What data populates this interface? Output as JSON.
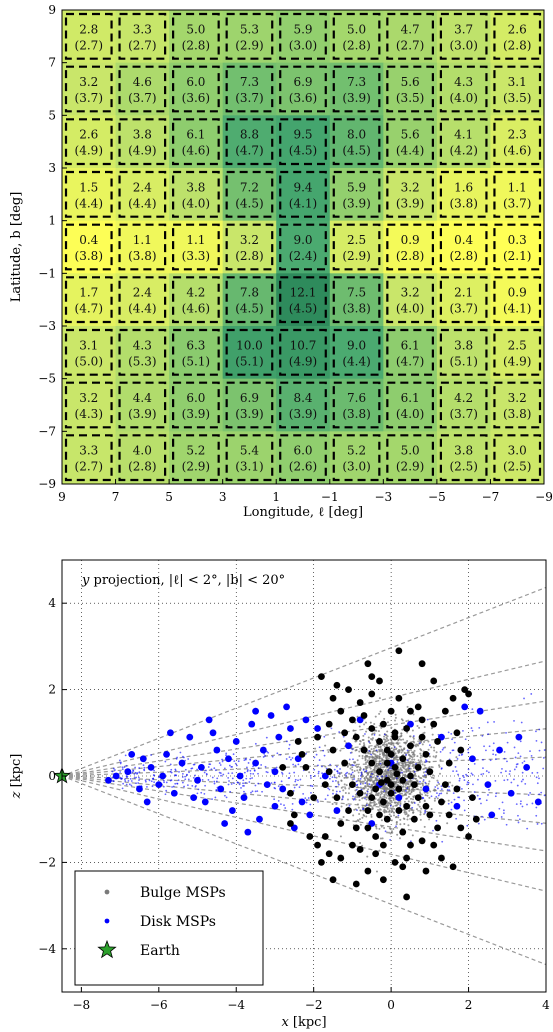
{
  "chart_data": [
    {
      "type": "heatmap",
      "xlabel": "Longitude, ℓ [deg]",
      "ylabel": "Latitude, b [deg]",
      "xlim": [
        9,
        -9
      ],
      "ylim": [
        -9,
        9
      ],
      "x_ticks": [
        "9",
        "7",
        "5",
        "3",
        "1",
        "−1",
        "−3",
        "−5",
        "−7",
        "−9"
      ],
      "y_ticks": [
        "9",
        "7",
        "5",
        "3",
        "1",
        "−1",
        "−3",
        "−5",
        "−7",
        "−9"
      ],
      "colormap": [
        "#ffff55",
        "#c8e66a",
        "#8ccc6e",
        "#47a870",
        "#2e8b5c"
      ],
      "value_range": [
        0.3,
        12.1
      ],
      "rows": [
        {
          "values": [
            "2.8",
            "3.3",
            "5.0",
            "5.3",
            "5.9",
            "5.0",
            "4.7",
            "3.7",
            "2.6"
          ],
          "errors": [
            "(2.7)",
            "(2.7)",
            "(2.8)",
            "(2.9)",
            "(3.0)",
            "(2.8)",
            "(2.7)",
            "(3.0)",
            "(2.8)"
          ]
        },
        {
          "values": [
            "3.2",
            "4.6",
            "6.0",
            "7.3",
            "6.9",
            "7.3",
            "5.6",
            "4.3",
            "3.1"
          ],
          "errors": [
            "(3.7)",
            "(3.7)",
            "(3.6)",
            "(3.7)",
            "(3.6)",
            "(3.9)",
            "(3.5)",
            "(4.0)",
            "(3.5)"
          ]
        },
        {
          "values": [
            "2.6",
            "3.8",
            "6.1",
            "8.8",
            "9.5",
            "8.0",
            "5.6",
            "4.1",
            "2.3"
          ],
          "errors": [
            "(4.9)",
            "(4.9)",
            "(4.6)",
            "(4.7)",
            "(4.5)",
            "(4.5)",
            "(4.4)",
            "(4.2)",
            "(4.6)"
          ]
        },
        {
          "values": [
            "1.5",
            "2.4",
            "3.8",
            "7.2",
            "9.4",
            "5.9",
            "3.2",
            "1.6",
            "1.1"
          ],
          "errors": [
            "(4.4)",
            "(4.4)",
            "(4.0)",
            "(4.5)",
            "(4.1)",
            "(3.9)",
            "(3.9)",
            "(3.8)",
            "(3.7)"
          ]
        },
        {
          "values": [
            "0.4",
            "1.1",
            "1.1",
            "3.2",
            "9.0",
            "2.5",
            "0.9",
            "0.4",
            "0.3"
          ],
          "errors": [
            "(3.8)",
            "(3.8)",
            "(3.3)",
            "(2.8)",
            "(2.4)",
            "(2.9)",
            "(2.8)",
            "(2.8)",
            "(2.1)"
          ]
        },
        {
          "values": [
            "1.7",
            "2.4",
            "4.2",
            "7.8",
            "12.1",
            "7.5",
            "3.2",
            "2.1",
            "0.9"
          ],
          "errors": [
            "(4.7)",
            "(4.4)",
            "(4.6)",
            "(4.5)",
            "(4.5)",
            "(3.8)",
            "(4.0)",
            "(3.7)",
            "(4.1)"
          ]
        },
        {
          "values": [
            "3.1",
            "4.3",
            "6.3",
            "10.0",
            "10.7",
            "9.0",
            "6.1",
            "3.8",
            "2.5"
          ],
          "errors": [
            "(5.0)",
            "(5.3)",
            "(5.1)",
            "(5.1)",
            "(4.9)",
            "(4.4)",
            "(4.7)",
            "(5.1)",
            "(4.9)"
          ]
        },
        {
          "values": [
            "3.2",
            "4.4",
            "6.0",
            "6.9",
            "8.4",
            "7.6",
            "6.1",
            "4.2",
            "3.2"
          ],
          "errors": [
            "(4.3)",
            "(3.9)",
            "(3.9)",
            "(3.9)",
            "(3.9)",
            "(3.8)",
            "(4.0)",
            "(3.7)",
            "(3.8)"
          ]
        },
        {
          "values": [
            "3.3",
            "4.0",
            "5.2",
            "5.4",
            "6.0",
            "5.2",
            "5.0",
            "3.8",
            "3.0"
          ],
          "errors": [
            "(2.7)",
            "(2.8)",
            "(2.9)",
            "(3.1)",
            "(2.6)",
            "(3.0)",
            "(2.9)",
            "(2.5)",
            "(2.5)"
          ]
        }
      ]
    },
    {
      "type": "scatter",
      "annotation_parts": [
        "y",
        " projection, |ℓ| < 2°, |b| < 20°"
      ],
      "xlabel_var": "x",
      "xlabel_unit": " [kpc]",
      "ylabel_var": "z",
      "ylabel_unit": " [kpc]",
      "xlim": [
        -8.5,
        4
      ],
      "ylim": [
        -5,
        5
      ],
      "x_ticks": [
        -8,
        -6,
        -4,
        -2,
        0,
        2,
        4
      ],
      "y_ticks": [
        -4,
        -2,
        0,
        2,
        4
      ],
      "x_tick_labels": [
        "−8",
        "−6",
        "−4",
        "−2",
        "0",
        "2",
        "4"
      ],
      "y_tick_labels": [
        "−4",
        "−2",
        "0",
        "2",
        "4"
      ],
      "grid": true,
      "legend_placement": "lower-left",
      "earth": {
        "x": -8.5,
        "z": 0
      },
      "cone_slopes": [
        0.3492,
        0.2132,
        0.1388,
        0.0875,
        0.035
      ],
      "colors": {
        "bulge": "#000000",
        "bulge_small": "#7a7a7a",
        "disk": "#0000ff",
        "earth": "#2ca02c"
      },
      "series": [
        {
          "name": "Bulge MSPs",
          "points": [
            [
              -2.1,
              -1.4
            ],
            [
              -2.5,
              -0.9
            ],
            [
              -1.9,
              -1.6
            ],
            [
              -1.6,
              -1.8
            ],
            [
              -1.5,
              -2.4
            ],
            [
              -1.8,
              -2.0
            ],
            [
              -1.3,
              -1.9
            ],
            [
              -1.0,
              -1.6
            ],
            [
              -0.8,
              -1.7
            ],
            [
              -0.6,
              -2.2
            ],
            [
              -0.4,
              -1.8
            ],
            [
              -0.2,
              -2.4
            ],
            [
              0.1,
              -2.0
            ],
            [
              0.3,
              -2.1
            ],
            [
              0.5,
              -1.6
            ],
            [
              0.8,
              -1.5
            ],
            [
              1.1,
              -1.6
            ],
            [
              1.3,
              -1.9
            ],
            [
              1.6,
              -2.1
            ],
            [
              1.8,
              -1.2
            ],
            [
              2.0,
              -1.4
            ],
            [
              0.9,
              -2.2
            ],
            [
              0.4,
              -2.8
            ],
            [
              -0.9,
              -1.2
            ],
            [
              -1.1,
              -0.8
            ],
            [
              -1.4,
              -0.5
            ],
            [
              -1.7,
              -0.2
            ],
            [
              -2.0,
              -0.5
            ],
            [
              -2.3,
              0.5
            ],
            [
              -2.2,
              0.2
            ],
            [
              -1.9,
              0.9
            ],
            [
              -1.6,
              1.2
            ],
            [
              -1.3,
              1.5
            ],
            [
              -1.0,
              1.3
            ],
            [
              -0.8,
              1.7
            ],
            [
              -0.5,
              1.9
            ],
            [
              -0.3,
              2.2
            ],
            [
              -0.5,
              2.3
            ],
            [
              -1.1,
              2.0
            ],
            [
              -1.8,
              2.3
            ],
            [
              -1.4,
              2.1
            ],
            [
              0.2,
              1.8
            ],
            [
              0.5,
              1.5
            ],
            [
              0.8,
              1.3
            ],
            [
              1.1,
              1.2
            ],
            [
              1.4,
              1.5
            ],
            [
              1.6,
              1.8
            ],
            [
              1.9,
              2.0
            ],
            [
              2.0,
              1.9
            ],
            [
              0.8,
              2.6
            ],
            [
              -0.5,
              1.1
            ],
            [
              -0.3,
              0.8
            ],
            [
              -0.1,
              0.6
            ],
            [
              0.1,
              0.9
            ],
            [
              0.3,
              0.4
            ],
            [
              0.5,
              0.7
            ],
            [
              0.7,
              0.2
            ],
            [
              0.9,
              0.5
            ],
            [
              1.2,
              0.8
            ],
            [
              1.5,
              0.3
            ],
            [
              1.7,
              -0.3
            ],
            [
              1.3,
              -0.6
            ],
            [
              1.0,
              -0.9
            ],
            [
              0.7,
              -0.5
            ],
            [
              0.4,
              -0.7
            ],
            [
              0.2,
              -0.3
            ],
            [
              0.0,
              -0.4
            ],
            [
              -0.2,
              -0.6
            ],
            [
              -0.4,
              -0.3
            ],
            [
              -0.6,
              -0.8
            ],
            [
              -0.8,
              -0.4
            ],
            [
              -1.2,
              0.3
            ],
            [
              -1.5,
              0.6
            ],
            [
              -2.6,
              -0.4
            ],
            [
              -2.4,
              0.8
            ],
            [
              -0.3,
              0.1
            ],
            [
              -0.1,
              -0.1
            ],
            [
              0.1,
              0.2
            ],
            [
              0.3,
              -0.1
            ],
            [
              -0.5,
              0.3
            ],
            [
              0.6,
              -0.2
            ],
            [
              -0.7,
              0.6
            ],
            [
              0.8,
              0.9
            ],
            [
              -0.9,
              0.9
            ],
            [
              1.0,
              0.1
            ],
            [
              -1.0,
              -0.2
            ],
            [
              0.0,
              0.5
            ],
            [
              0.2,
              -0.8
            ],
            [
              -0.2,
              1.2
            ],
            [
              0.4,
              1.1
            ],
            [
              -0.6,
              -1.2
            ],
            [
              0.6,
              -1.0
            ],
            [
              -1.3,
              -1.1
            ],
            [
              1.2,
              -1.2
            ],
            [
              -0.4,
              -1.4
            ],
            [
              0.3,
              -1.3
            ],
            [
              1.5,
              -0.9
            ],
            [
              -1.6,
              0.1
            ],
            [
              1.8,
              0.6
            ],
            [
              -2.8,
              0.2
            ],
            [
              -0.9,
              -2.5
            ],
            [
              2.1,
              -0.5
            ],
            [
              0.0,
              1.5
            ],
            [
              -0.7,
              1.4
            ],
            [
              0.7,
              1.6
            ],
            [
              1.4,
              -0.2
            ],
            [
              -1.2,
              1.0
            ],
            [
              -0.1,
              -1.0
            ],
            [
              0.1,
              1.0
            ],
            [
              -0.3,
              -0.9
            ],
            [
              0.5,
              0.0
            ],
            [
              -0.5,
              -0.5
            ],
            [
              0.9,
              -0.7
            ],
            [
              -2.6,
              -1.1
            ],
            [
              2.2,
              -1.0
            ],
            [
              -1.7,
              -1.4
            ],
            [
              1.7,
              1.0
            ],
            [
              -0.2,
              -1.6
            ],
            [
              0.4,
              -1.9
            ],
            [
              -1.5,
              1.8
            ],
            [
              1.1,
              2.2
            ],
            [
              -0.6,
              2.6
            ],
            [
              0.2,
              2.9
            ],
            [
              -0.1,
              0.3
            ],
            [
              0.0,
              -0.2
            ],
            [
              0.15,
              0.05
            ],
            [
              -0.25,
              -0.15
            ]
          ]
        },
        {
          "name": "Disk MSPs",
          "points": [
            [
              -7.1,
              0.0
            ],
            [
              -6.8,
              0.1
            ],
            [
              -6.5,
              -0.3
            ],
            [
              -6.4,
              0.4
            ],
            [
              -6.2,
              0.2
            ],
            [
              -6.0,
              -0.2
            ],
            [
              -5.8,
              0.5
            ],
            [
              -5.6,
              -0.4
            ],
            [
              -5.4,
              0.3
            ],
            [
              -5.2,
              0.9
            ],
            [
              -5.0,
              -0.1
            ],
            [
              -4.9,
              0.2
            ],
            [
              -4.8,
              -0.6
            ],
            [
              -4.6,
              1.0
            ],
            [
              -4.5,
              0.6
            ],
            [
              -4.4,
              -0.3
            ],
            [
              -4.2,
              0.4
            ],
            [
              -4.1,
              -0.8
            ],
            [
              -4.0,
              0.8
            ],
            [
              -3.9,
              0.0
            ],
            [
              -3.8,
              -0.5
            ],
            [
              -3.6,
              1.2
            ],
            [
              -3.5,
              0.3
            ],
            [
              -3.4,
              -1.0
            ],
            [
              -3.3,
              0.6
            ],
            [
              -3.2,
              -0.2
            ],
            [
              -3.1,
              1.4
            ],
            [
              -3.0,
              -0.7
            ],
            [
              -2.9,
              0.9
            ],
            [
              -2.8,
              -0.3
            ],
            [
              -2.6,
              1.1
            ],
            [
              -2.5,
              -1.2
            ],
            [
              -2.4,
              0.4
            ],
            [
              -2.3,
              -0.6
            ],
            [
              -2.2,
              1.3
            ],
            [
              -6.3,
              -0.6
            ],
            [
              -5.7,
              1.0
            ],
            [
              -5.1,
              -0.5
            ],
            [
              -4.7,
              1.3
            ],
            [
              -3.7,
              -1.3
            ],
            [
              -3.0,
              0.1
            ],
            [
              -2.7,
              1.6
            ],
            [
              -6.7,
              0.5
            ],
            [
              -5.9,
              0.0
            ],
            [
              -4.3,
              -1.1
            ],
            [
              -3.5,
              1.5
            ],
            [
              -2.1,
              -0.9
            ],
            [
              -1.9,
              1.1
            ],
            [
              -1.7,
              0.0
            ],
            [
              -1.4,
              -0.8
            ],
            [
              -1.1,
              0.7
            ],
            [
              -0.8,
              1.3
            ],
            [
              -0.5,
              -1.1
            ],
            [
              0.2,
              -0.5
            ],
            [
              0.5,
              1.2
            ],
            [
              0.9,
              -0.3
            ],
            [
              1.3,
              0.9
            ],
            [
              1.7,
              -0.7
            ],
            [
              2.1,
              0.4
            ],
            [
              2.5,
              -0.2
            ],
            [
              2.8,
              0.6
            ],
            [
              3.1,
              -0.4
            ],
            [
              3.5,
              0.2
            ],
            [
              3.8,
              -0.6
            ],
            [
              2.3,
              1.5
            ],
            [
              2.6,
              -0.9
            ],
            [
              3.3,
              0.9
            ],
            [
              1.9,
              1.6
            ],
            [
              0.0,
              0.3
            ],
            [
              -0.3,
              -0.2
            ],
            [
              -7.3,
              -0.1
            ]
          ]
        }
      ]
    }
  ]
}
